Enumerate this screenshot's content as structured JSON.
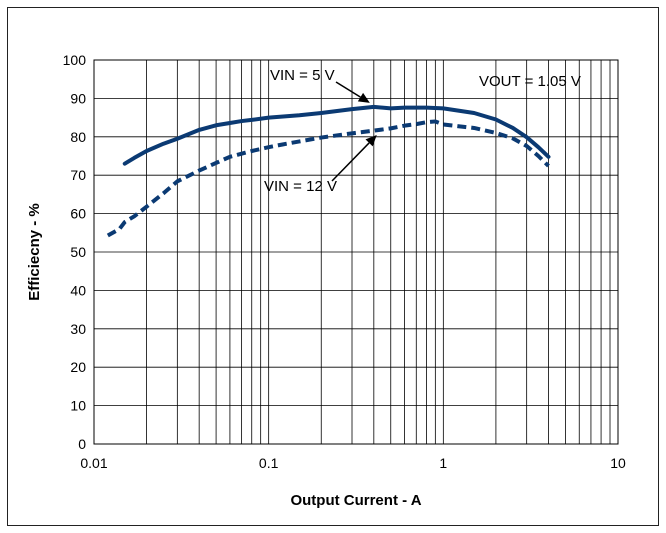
{
  "chart_data": {
    "type": "line",
    "title": "",
    "xlabel": "Output Current - A",
    "ylabel": "Efficiecny - %",
    "x_scale": "log",
    "xlim": [
      0.01,
      10
    ],
    "ylim": [
      0,
      100
    ],
    "x_ticks": [
      "0.01",
      "0.1",
      "1",
      "10"
    ],
    "y_ticks": [
      "0",
      "10",
      "20",
      "30",
      "40",
      "50",
      "60",
      "70",
      "80",
      "90",
      "100"
    ],
    "grid": true,
    "series": [
      {
        "name": "VIN = 5 V",
        "style": "solid",
        "color": "#0b3a73",
        "x": [
          0.015,
          0.017,
          0.02,
          0.025,
          0.03,
          0.04,
          0.05,
          0.06,
          0.07,
          0.08,
          0.1,
          0.15,
          0.2,
          0.3,
          0.4,
          0.5,
          0.6,
          0.7,
          0.8,
          1.0,
          1.5,
          2.0,
          2.5,
          3.0,
          3.5,
          4.0
        ],
        "y": [
          73.0,
          74.5,
          76.3,
          78.2,
          79.5,
          81.8,
          83.0,
          83.6,
          84.1,
          84.4,
          85.0,
          85.6,
          86.2,
          87.2,
          87.8,
          87.4,
          87.6,
          87.6,
          87.6,
          87.4,
          86.2,
          84.5,
          82.3,
          79.9,
          77.3,
          74.8
        ]
      },
      {
        "name": "VIN = 12 V",
        "style": "dashed",
        "color": "#0b3a73",
        "x": [
          0.012,
          0.014,
          0.015,
          0.017,
          0.02,
          0.025,
          0.03,
          0.04,
          0.05,
          0.06,
          0.07,
          0.08,
          0.1,
          0.12,
          0.15,
          0.2,
          0.3,
          0.4,
          0.5,
          0.6,
          0.7,
          0.8,
          0.9,
          1.0,
          1.5,
          2.0,
          2.5,
          3.0,
          3.5,
          4.0
        ],
        "y": [
          54.3,
          56.0,
          57.8,
          59.3,
          61.8,
          65.3,
          68.4,
          71.2,
          73.2,
          74.8,
          75.6,
          76.3,
          77.3,
          78.0,
          78.8,
          79.8,
          80.9,
          81.6,
          82.2,
          82.9,
          83.3,
          83.8,
          84.0,
          83.2,
          82.3,
          81.0,
          79.6,
          77.6,
          75.0,
          72.4
        ]
      }
    ],
    "annotations": [
      {
        "text": "VIN = 5 V",
        "points_to": {
          "x": 0.4,
          "y": 87.8
        }
      },
      {
        "text": "VIN = 12 V",
        "points_to": {
          "x": 0.45,
          "y": 81.5
        }
      },
      {
        "text": "VOUT = 1.05 V"
      }
    ]
  }
}
